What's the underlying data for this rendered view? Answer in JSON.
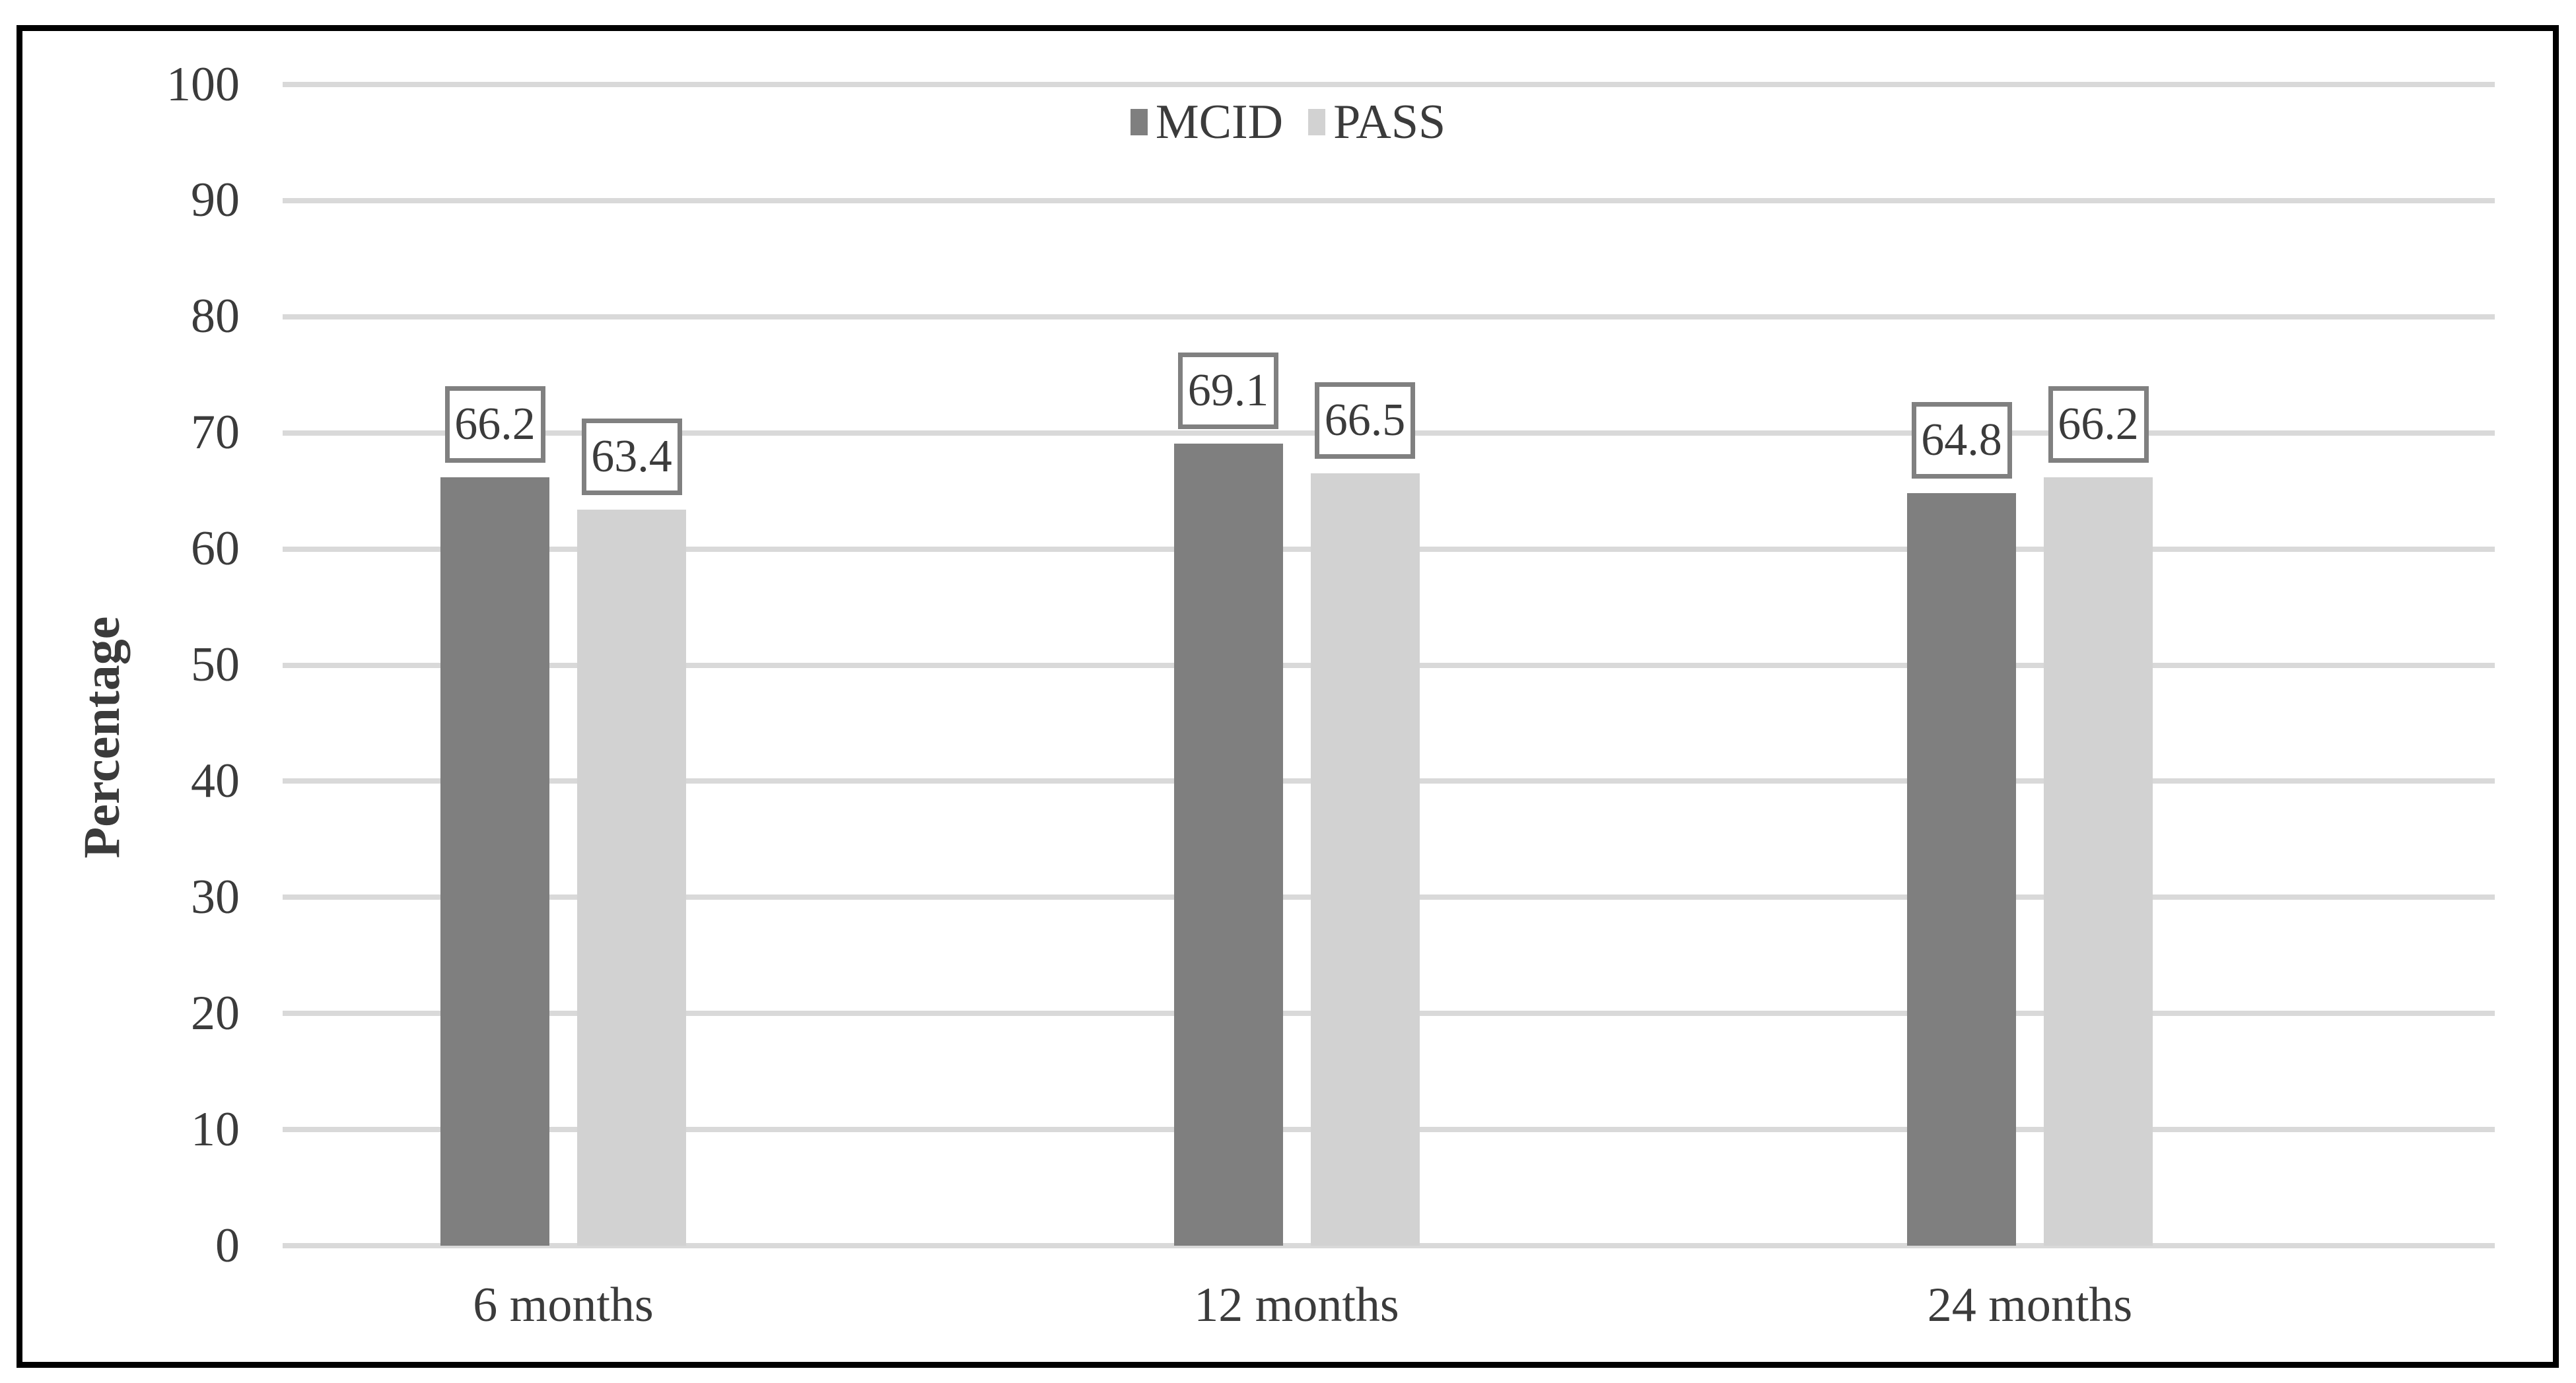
{
  "chart_data": {
    "type": "bar",
    "title": "",
    "categories": [
      "6 months",
      "12 months",
      "24 months"
    ],
    "series": [
      {
        "name": "MCID",
        "color": "#7f7f7f",
        "values": [
          66.2,
          69.1,
          64.8
        ],
        "labels": [
          "66.2",
          "69.1",
          "64.8"
        ]
      },
      {
        "name": "PASS",
        "color": "#d2d2d2",
        "values": [
          63.4,
          66.5,
          66.2
        ],
        "labels": [
          "63.4",
          "66.5",
          "66.2"
        ]
      }
    ],
    "xlabel": "",
    "ylabel": "Percentage",
    "ylim": [
      0,
      100
    ],
    "ytick_step": 10,
    "yticks": [
      "0",
      "10",
      "20",
      "30",
      "40",
      "50",
      "60",
      "70",
      "80",
      "90",
      "100"
    ],
    "grid": true,
    "legend_position": "top-center",
    "data_labels": "boxed"
  },
  "colors": {
    "bar_mcid": "#7f7f7f",
    "bar_pass": "#d2d2d2",
    "gridline": "#d9d9d9",
    "frame_border": "#000000",
    "text": "#3b3b3b",
    "value_box_border": "#808080",
    "background": "#ffffff"
  }
}
